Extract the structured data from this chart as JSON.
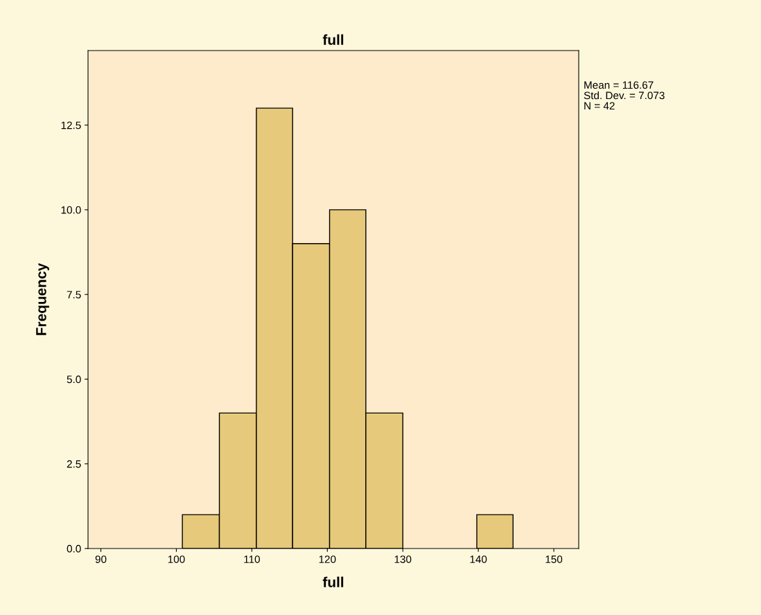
{
  "chart_data": {
    "type": "histogram",
    "title": "full",
    "xlabel": "full",
    "ylabel": "Frequency",
    "bins": [
      100.8,
      105.7,
      110.6,
      115.4,
      120.3,
      125.1,
      130.0,
      139.8,
      144.6
    ],
    "values": [
      1,
      4,
      13,
      9,
      10,
      4,
      0,
      1
    ],
    "color": "#e6c97a",
    "xlim": [
      88.3,
      153.3
    ],
    "ylim": [
      0,
      14.7
    ],
    "xticks": [
      90,
      100,
      110,
      120,
      130,
      140,
      150
    ],
    "yticks": [
      {
        "value": 0,
        "label": "0.0"
      },
      {
        "value": 2.5,
        "label": "2.5"
      },
      {
        "value": 5,
        "label": "5.0"
      },
      {
        "value": 7.5,
        "label": "7.5"
      },
      {
        "value": 10,
        "label": "10.0"
      },
      {
        "value": 12.5,
        "label": "12.5"
      }
    ],
    "grid": false,
    "annotations": [
      "Mean = 116.67",
      "Std. Dev. = 7.073",
      "N = 42"
    ]
  }
}
